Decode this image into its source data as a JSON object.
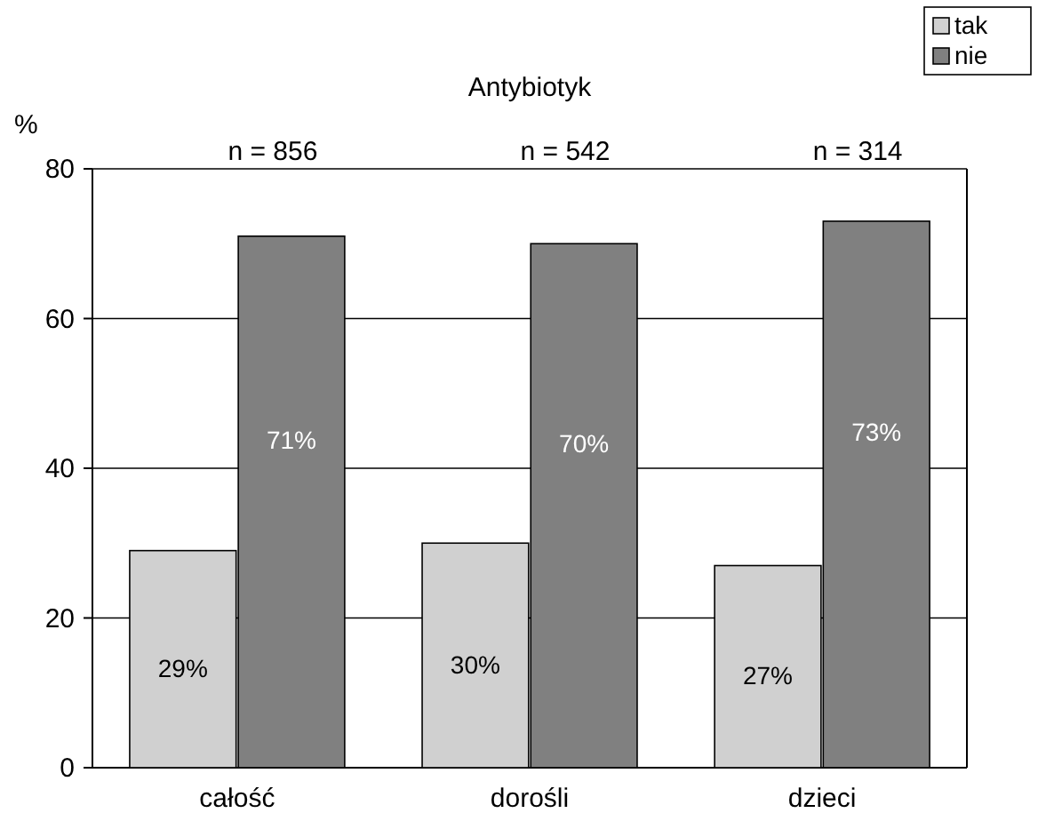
{
  "chart_data": {
    "type": "bar",
    "title": "Antybiotyk",
    "ylabel": "%",
    "categories": [
      "całość",
      "dorośli",
      "dzieci"
    ],
    "series": [
      {
        "name": "tak",
        "color": "#d0d0d0",
        "values": [
          29,
          30,
          27
        ],
        "value_labels": [
          "29%",
          "30%",
          "27%"
        ]
      },
      {
        "name": "nie",
        "color": "#808080",
        "values": [
          71,
          70,
          73
        ],
        "value_labels": [
          "71%",
          "70%",
          "73%"
        ]
      }
    ],
    "ylim": [
      0,
      80
    ],
    "yticks": [
      0,
      20,
      40,
      60,
      80
    ],
    "grid": "y",
    "legend": "top right",
    "annotations": [
      "n = 856",
      "n = 542",
      "n = 314"
    ]
  }
}
